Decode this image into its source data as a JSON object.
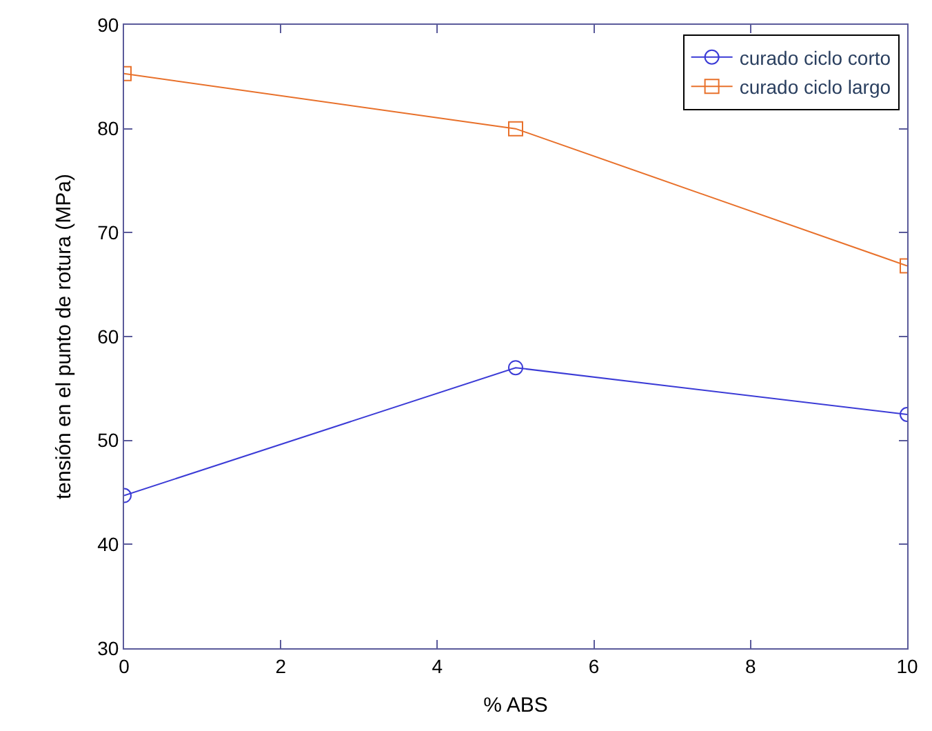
{
  "chart_data": {
    "type": "line",
    "xlabel": "% ABS",
    "ylabel": "tensión en el punto de rotura (MPa)",
    "x": [
      0,
      5,
      10
    ],
    "series": [
      {
        "name": "curado ciclo corto",
        "color": "#3b3bd6",
        "values": [
          44.7,
          57,
          52.5
        ],
        "marker": "circle"
      },
      {
        "name": "curado ciclo largo",
        "color": "#e8702a",
        "values": [
          85.3,
          80,
          66.8
        ],
        "marker": "square"
      }
    ],
    "xlim": [
      0,
      10
    ],
    "xticks": [
      0,
      2,
      4,
      6,
      8,
      10
    ],
    "ylim": [
      30,
      90
    ],
    "yticks": [
      30,
      40,
      50,
      60,
      70,
      80,
      90
    ],
    "grid": false,
    "legend": "top right",
    "line_style": "solid"
  }
}
